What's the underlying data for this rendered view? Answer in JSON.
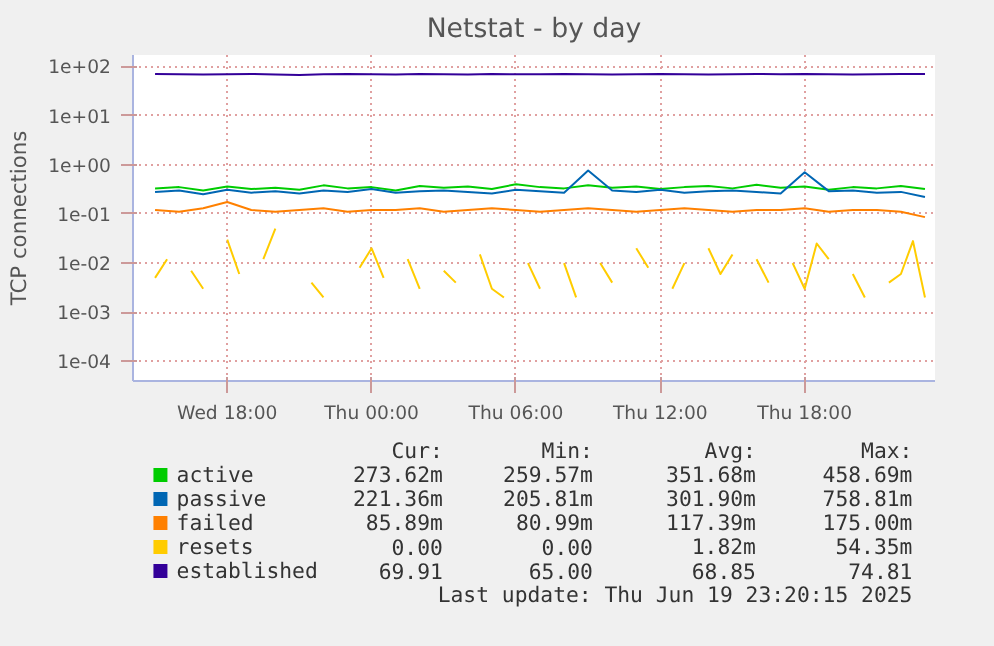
{
  "chart_data": {
    "type": "line",
    "title": "Netstat - by day",
    "ylabel": "TCP connections",
    "x": [
      "2025-06-18T15:00",
      "2025-06-18T16:00",
      "2025-06-18T17:00",
      "2025-06-18T18:00",
      "2025-06-18T19:00",
      "2025-06-18T20:00",
      "2025-06-18T21:00",
      "2025-06-18T22:00",
      "2025-06-18T23:00",
      "2025-06-19T00:00",
      "2025-06-19T01:00",
      "2025-06-19T02:00",
      "2025-06-19T03:00",
      "2025-06-19T04:00",
      "2025-06-19T05:00",
      "2025-06-19T06:00",
      "2025-06-19T07:00",
      "2025-06-19T08:00",
      "2025-06-19T09:00",
      "2025-06-19T10:00",
      "2025-06-19T11:00",
      "2025-06-19T12:00",
      "2025-06-19T13:00",
      "2025-06-19T14:00",
      "2025-06-19T15:00",
      "2025-06-19T16:00",
      "2025-06-19T17:00",
      "2025-06-19T18:00",
      "2025-06-19T19:00",
      "2025-06-19T20:00",
      "2025-06-19T21:00",
      "2025-06-19T22:00",
      "2025-06-19T23:00"
    ],
    "series": [
      {
        "name": "active",
        "color": "#00cc00",
        "values": [
          0.33,
          0.35,
          0.3,
          0.36,
          0.32,
          0.34,
          0.31,
          0.38,
          0.33,
          0.35,
          0.3,
          0.37,
          0.34,
          0.36,
          0.32,
          0.4,
          0.35,
          0.33,
          0.38,
          0.34,
          0.36,
          0.32,
          0.35,
          0.37,
          0.33,
          0.39,
          0.34,
          0.36,
          0.31,
          0.35,
          0.33,
          0.37,
          0.32
        ]
      },
      {
        "name": "passive",
        "color": "#0066b3",
        "values": [
          0.28,
          0.3,
          0.25,
          0.31,
          0.27,
          0.29,
          0.26,
          0.3,
          0.28,
          0.32,
          0.27,
          0.29,
          0.3,
          0.28,
          0.26,
          0.31,
          0.29,
          0.27,
          0.76,
          0.3,
          0.28,
          0.31,
          0.27,
          0.29,
          0.3,
          0.28,
          0.26,
          0.7,
          0.29,
          0.3,
          0.27,
          0.28,
          0.22
        ]
      },
      {
        "name": "failed",
        "color": "#ff8000",
        "values": [
          0.12,
          0.11,
          0.13,
          0.175,
          0.12,
          0.11,
          0.12,
          0.13,
          0.11,
          0.12,
          0.12,
          0.13,
          0.11,
          0.12,
          0.13,
          0.12,
          0.11,
          0.12,
          0.13,
          0.12,
          0.11,
          0.12,
          0.13,
          0.12,
          0.11,
          0.12,
          0.12,
          0.13,
          0.11,
          0.12,
          0.12,
          0.11,
          0.086
        ]
      },
      {
        "name": "resets",
        "color": "#ffcc00",
        "x": [
          "2025-06-18T15:00",
          "2025-06-18T15:30",
          "2025-06-18T16:00",
          "2025-06-18T16:30",
          "2025-06-18T17:00",
          "2025-06-18T17:30",
          "2025-06-18T18:00",
          "2025-06-18T18:30",
          "2025-06-18T19:00",
          "2025-06-18T19:30",
          "2025-06-18T20:00",
          "2025-06-18T20:30",
          "2025-06-18T21:00",
          "2025-06-18T21:30",
          "2025-06-18T22:00",
          "2025-06-18T22:30",
          "2025-06-18T23:00",
          "2025-06-18T23:30",
          "2025-06-19T00:00",
          "2025-06-19T00:30",
          "2025-06-19T01:00",
          "2025-06-19T01:30",
          "2025-06-19T02:00",
          "2025-06-19T02:30",
          "2025-06-19T03:00",
          "2025-06-19T03:30",
          "2025-06-19T04:00",
          "2025-06-19T04:30",
          "2025-06-19T05:00",
          "2025-06-19T05:30",
          "2025-06-19T06:00",
          "2025-06-19T06:30",
          "2025-06-19T07:00",
          "2025-06-19T07:30",
          "2025-06-19T08:00",
          "2025-06-19T08:30",
          "2025-06-19T09:00",
          "2025-06-19T09:30",
          "2025-06-19T10:00",
          "2025-06-19T10:30",
          "2025-06-19T11:00",
          "2025-06-19T11:30",
          "2025-06-19T12:00",
          "2025-06-19T12:30",
          "2025-06-19T13:00",
          "2025-06-19T13:30",
          "2025-06-19T14:00",
          "2025-06-19T14:30",
          "2025-06-19T15:00",
          "2025-06-19T15:30",
          "2025-06-19T16:00",
          "2025-06-19T16:30",
          "2025-06-19T17:00",
          "2025-06-19T17:30",
          "2025-06-19T18:00",
          "2025-06-19T18:30",
          "2025-06-19T19:00",
          "2025-06-19T19:30",
          "2025-06-19T20:00",
          "2025-06-19T20:30",
          "2025-06-19T21:00",
          "2025-06-19T21:30",
          "2025-06-19T22:00",
          "2025-06-19T22:30",
          "2025-06-19T23:00"
        ],
        "values": [
          0.005,
          0.012,
          null,
          0.007,
          0.003,
          null,
          0.03,
          0.006,
          null,
          0.012,
          0.05,
          null,
          null,
          0.004,
          0.002,
          null,
          null,
          0.008,
          0.02,
          0.005,
          null,
          0.012,
          0.003,
          null,
          0.007,
          0.004,
          null,
          0.015,
          0.003,
          0.002,
          null,
          0.01,
          0.003,
          null,
          0.01,
          0.002,
          null,
          0.01,
          0.004,
          null,
          0.02,
          0.008,
          null,
          0.003,
          0.01,
          null,
          0.02,
          0.006,
          0.015,
          null,
          0.012,
          0.004,
          null,
          0.01,
          0.003,
          0.025,
          0.012,
          null,
          0.006,
          0.002,
          null,
          0.004,
          0.006,
          0.028,
          0.002
        ]
      },
      {
        "name": "established",
        "color": "#330099",
        "values": [
          70,
          69,
          68,
          69,
          70,
          68,
          67,
          69,
          70,
          69,
          68,
          70,
          69,
          68,
          70,
          69,
          69,
          70,
          69,
          68,
          69,
          70,
          69,
          68,
          69,
          70,
          69,
          70,
          69,
          68,
          69,
          70,
          69.91
        ]
      }
    ],
    "log": true,
    "xlim": [
      "2025-06-18T14:05",
      "2025-06-19T23:25"
    ],
    "xticks": [
      {
        "value": "2025-06-18T18:00",
        "label": "Wed 18:00"
      },
      {
        "value": "2025-06-19T00:00",
        "label": "Thu 00:00"
      },
      {
        "value": "2025-06-19T06:00",
        "label": "Thu 06:00"
      },
      {
        "value": "2025-06-19T12:00",
        "label": "Thu 12:00"
      },
      {
        "value": "2025-06-19T18:00",
        "label": "Thu 18:00"
      }
    ],
    "ylim": [
      4e-05,
      170
    ],
    "yticks": [
      {
        "value": 0.0001,
        "label": "1e-04"
      },
      {
        "value": 0.001,
        "label": "1e-03"
      },
      {
        "value": 0.01,
        "label": "1e-02"
      },
      {
        "value": 0.1,
        "label": "1e-01"
      },
      {
        "value": 1,
        "label": "1e+00"
      },
      {
        "value": 10,
        "label": "1e+01"
      },
      {
        "value": 100,
        "label": "1e+02"
      }
    ],
    "grid": true,
    "legend": "bottom",
    "line_style": "solid",
    "annotations": [
      "Cur:",
      "Min:",
      "Avg:",
      "Max:",
      "273.62m",
      "259.57m",
      "351.68m",
      "458.69m",
      "221.36m",
      "205.81m",
      "301.90m",
      "758.81m",
      "85.89m",
      "80.99m",
      "117.39m",
      "175.00m",
      "0.00",
      "0.00",
      "1.82m",
      "54.35m",
      "69.91",
      "65.00",
      "68.85",
      "74.81",
      "Last update: Thu Jun 19 23:20:15 2025"
    ]
  }
}
